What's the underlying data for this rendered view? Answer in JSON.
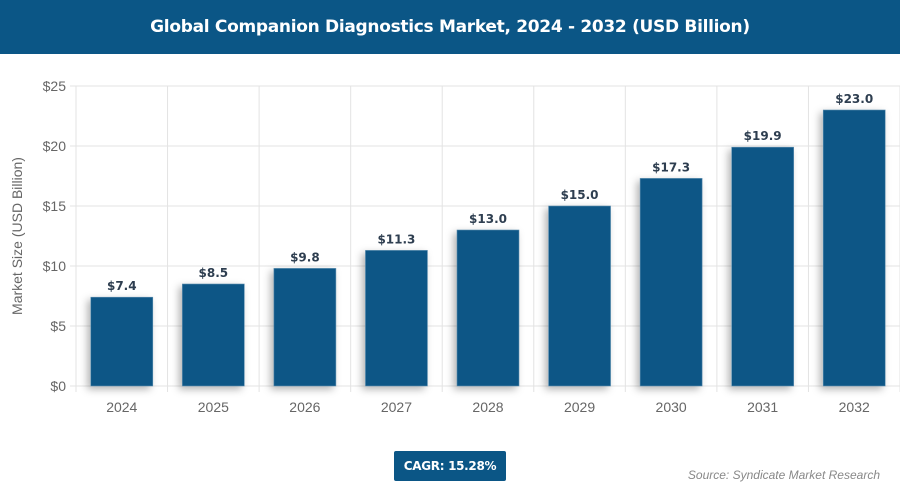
{
  "chart_data": {
    "type": "bar",
    "title": "Global Companion Diagnostics Market, 2024 - 2032 (USD Billion)",
    "xlabel": "",
    "ylabel": "Market Size (USD Billion)",
    "categories": [
      "2024",
      "2025",
      "2026",
      "2027",
      "2028",
      "2029",
      "2030",
      "2031",
      "2032"
    ],
    "values": [
      7.4,
      8.5,
      9.8,
      11.3,
      13.0,
      15.0,
      17.3,
      19.9,
      23.0
    ],
    "data_labels": [
      "$7.4",
      "$8.5",
      "$9.8",
      "$11.3",
      "$13.0",
      "$15.0",
      "$17.3",
      "$19.9",
      "$23.0"
    ],
    "ylim": [
      0,
      25
    ],
    "yticks": [
      0,
      5,
      10,
      15,
      20,
      25
    ],
    "ytick_labels": [
      "$0",
      "$5",
      "$10",
      "$15",
      "$20",
      "$25"
    ],
    "grid": true,
    "bar_color": "#0b5686"
  },
  "cagr": "CAGR: 15.28%",
  "source": "Source: Syndicate Market Research"
}
